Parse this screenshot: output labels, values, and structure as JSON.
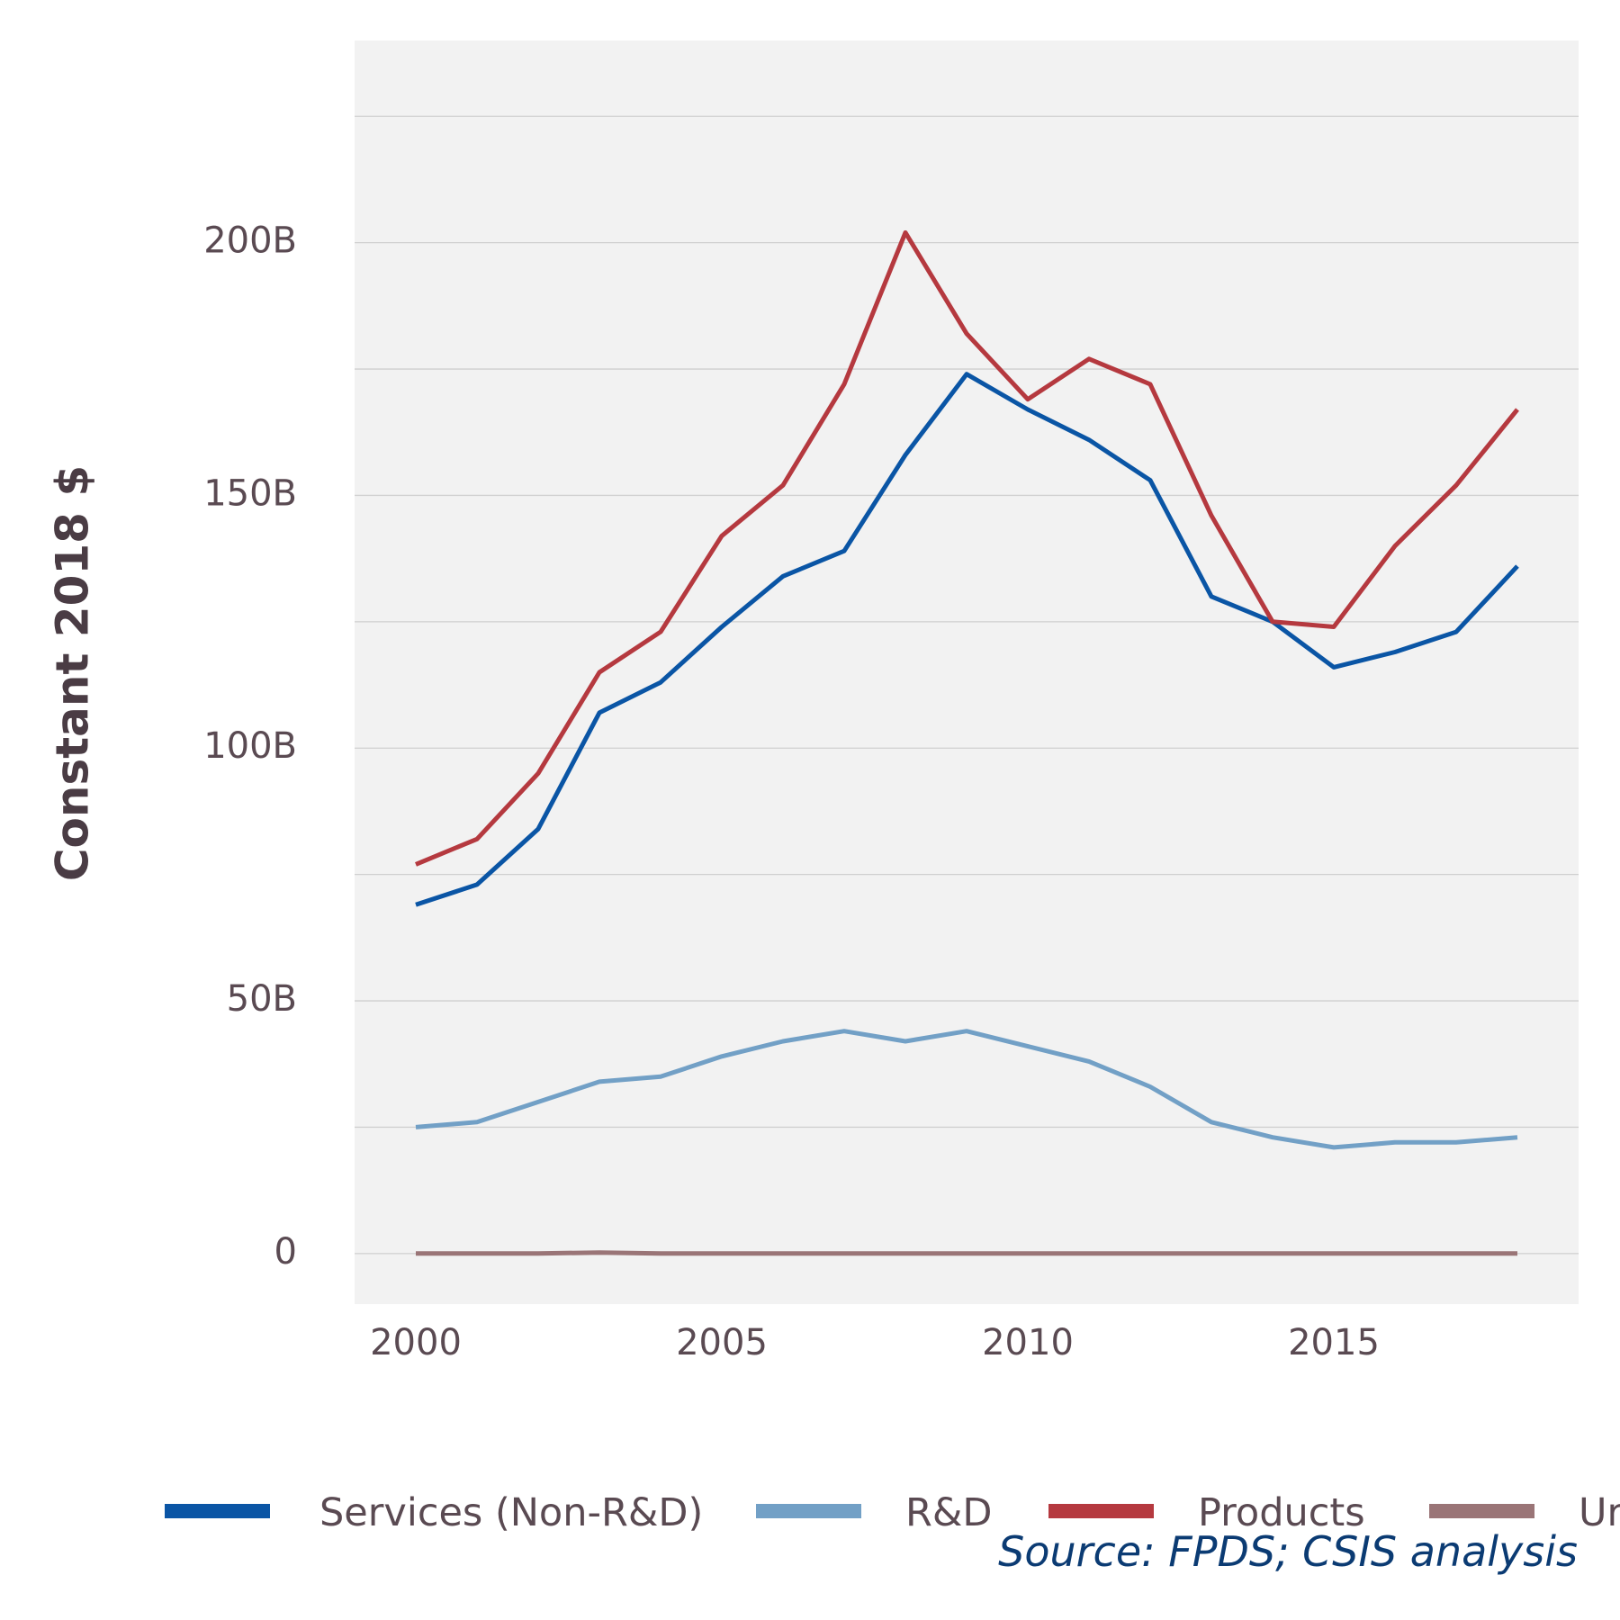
{
  "chart_data": {
    "type": "line",
    "title": "",
    "xlabel": "",
    "ylabel": "Constant 2018 $",
    "xlim": [
      1999,
      2019
    ],
    "ylim": [
      -10,
      240
    ],
    "grid": true,
    "x_ticks": [
      2000,
      2005,
      2010,
      2015
    ],
    "x_tick_labels": [
      "2000",
      "2005",
      "2010",
      "2015"
    ],
    "y_ticks": [
      0,
      50,
      100,
      150,
      200
    ],
    "y_tick_labels": [
      "0",
      "50B",
      "100B",
      "150B",
      "200B"
    ],
    "legend_position": "bottom",
    "x": [
      2000,
      2001,
      2002,
      2003,
      2004,
      2005,
      2006,
      2007,
      2008,
      2009,
      2010,
      2011,
      2012,
      2013,
      2014,
      2015,
      2016,
      2017,
      2018
    ],
    "series": [
      {
        "name": "Services (Non-R&D)",
        "color": "#0a55a5",
        "values": [
          69,
          73,
          84,
          107,
          113,
          124,
          134,
          139,
          158,
          174,
          167,
          161,
          153,
          130,
          125,
          116,
          119,
          123,
          136
        ]
      },
      {
        "name": "R&D",
        "color": "#72a0c6",
        "values": [
          25,
          26,
          30,
          34,
          35,
          39,
          42,
          44,
          42,
          44,
          41,
          38,
          33,
          26,
          23,
          21,
          22,
          22,
          23
        ]
      },
      {
        "name": "Products",
        "color": "#b5393f",
        "values": [
          77,
          82,
          95,
          115,
          123,
          142,
          152,
          172,
          202,
          182,
          169,
          177,
          172,
          146,
          125,
          124,
          140,
          152,
          167
        ]
      },
      {
        "name": "Ur",
        "color": "#9a7577",
        "values": [
          0,
          0,
          0,
          0.2,
          0,
          0,
          0,
          0,
          0,
          0,
          0,
          0,
          0,
          0,
          0,
          0,
          0,
          0,
          0
        ]
      }
    ]
  },
  "source_text": "Source: FPDS; CSIS analysis"
}
